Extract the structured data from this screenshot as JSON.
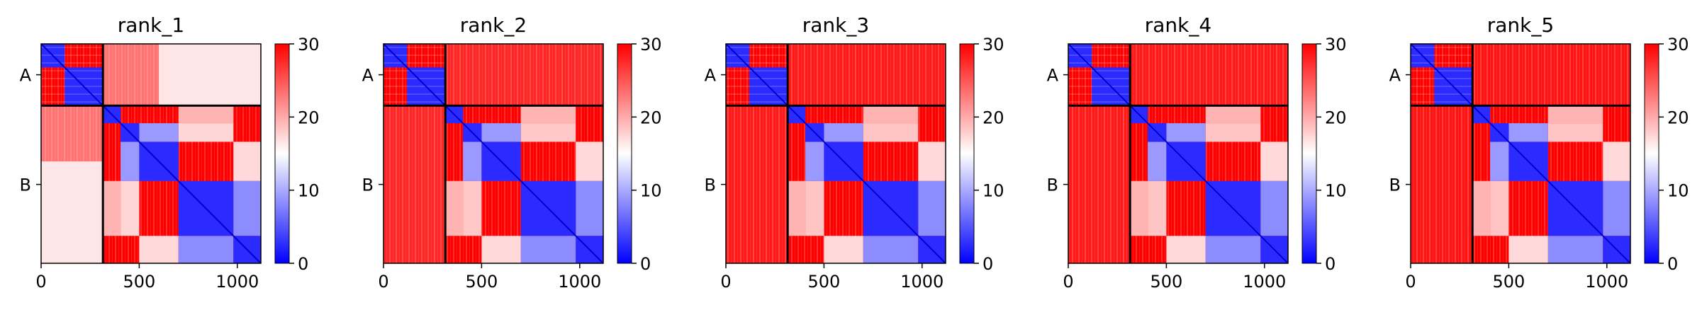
{
  "figure": {
    "background": "#ffffff"
  },
  "chart_data": [
    {
      "type": "heatmap",
      "title": "rank_1",
      "chain_labels": [
        "A",
        "B"
      ],
      "chain_boundary": 315,
      "x_ticks": [
        0,
        500,
        1000
      ],
      "xlim": [
        0,
        1120
      ],
      "colorbar": {
        "min": 0,
        "max": 30,
        "ticks": [
          0,
          10,
          20,
          30
        ],
        "colors": [
          "#0000ff",
          "#ffffff",
          "#ff0000"
        ]
      },
      "inter_chain_level": 0.55
    },
    {
      "type": "heatmap",
      "title": "rank_2",
      "chain_labels": [
        "A",
        "B"
      ],
      "chain_boundary": 315,
      "x_ticks": [
        0,
        500,
        1000
      ],
      "xlim": [
        0,
        1120
      ],
      "colorbar": {
        "min": 0,
        "max": 30,
        "ticks": [
          0,
          10,
          20,
          30
        ],
        "colors": [
          "#0000ff",
          "#ffffff",
          "#ff0000"
        ]
      },
      "inter_chain_level": 0.85
    },
    {
      "type": "heatmap",
      "title": "rank_3",
      "chain_labels": [
        "A",
        "B"
      ],
      "chain_boundary": 315,
      "x_ticks": [
        0,
        500,
        1000
      ],
      "xlim": [
        0,
        1120
      ],
      "colorbar": {
        "min": 0,
        "max": 30,
        "ticks": [
          0,
          10,
          20,
          30
        ],
        "colors": [
          "#0000ff",
          "#ffffff",
          "#ff0000"
        ]
      },
      "inter_chain_level": 0.9
    },
    {
      "type": "heatmap",
      "title": "rank_4",
      "chain_labels": [
        "A",
        "B"
      ],
      "chain_boundary": 315,
      "x_ticks": [
        0,
        500,
        1000
      ],
      "xlim": [
        0,
        1120
      ],
      "colorbar": {
        "min": 0,
        "max": 30,
        "ticks": [
          0,
          10,
          20,
          30
        ],
        "colors": [
          "#0000ff",
          "#ffffff",
          "#ff0000"
        ]
      },
      "inter_chain_level": 0.9
    },
    {
      "type": "heatmap",
      "title": "rank_5",
      "chain_labels": [
        "A",
        "B"
      ],
      "chain_boundary": 315,
      "x_ticks": [
        0,
        500,
        1000
      ],
      "xlim": [
        0,
        1120
      ],
      "colorbar": {
        "min": 0,
        "max": 30,
        "ticks": [
          0,
          10,
          20,
          30
        ],
        "colors": [
          "#0000ff",
          "#ffffff",
          "#ff0000"
        ]
      },
      "inter_chain_level": 0.92
    }
  ]
}
